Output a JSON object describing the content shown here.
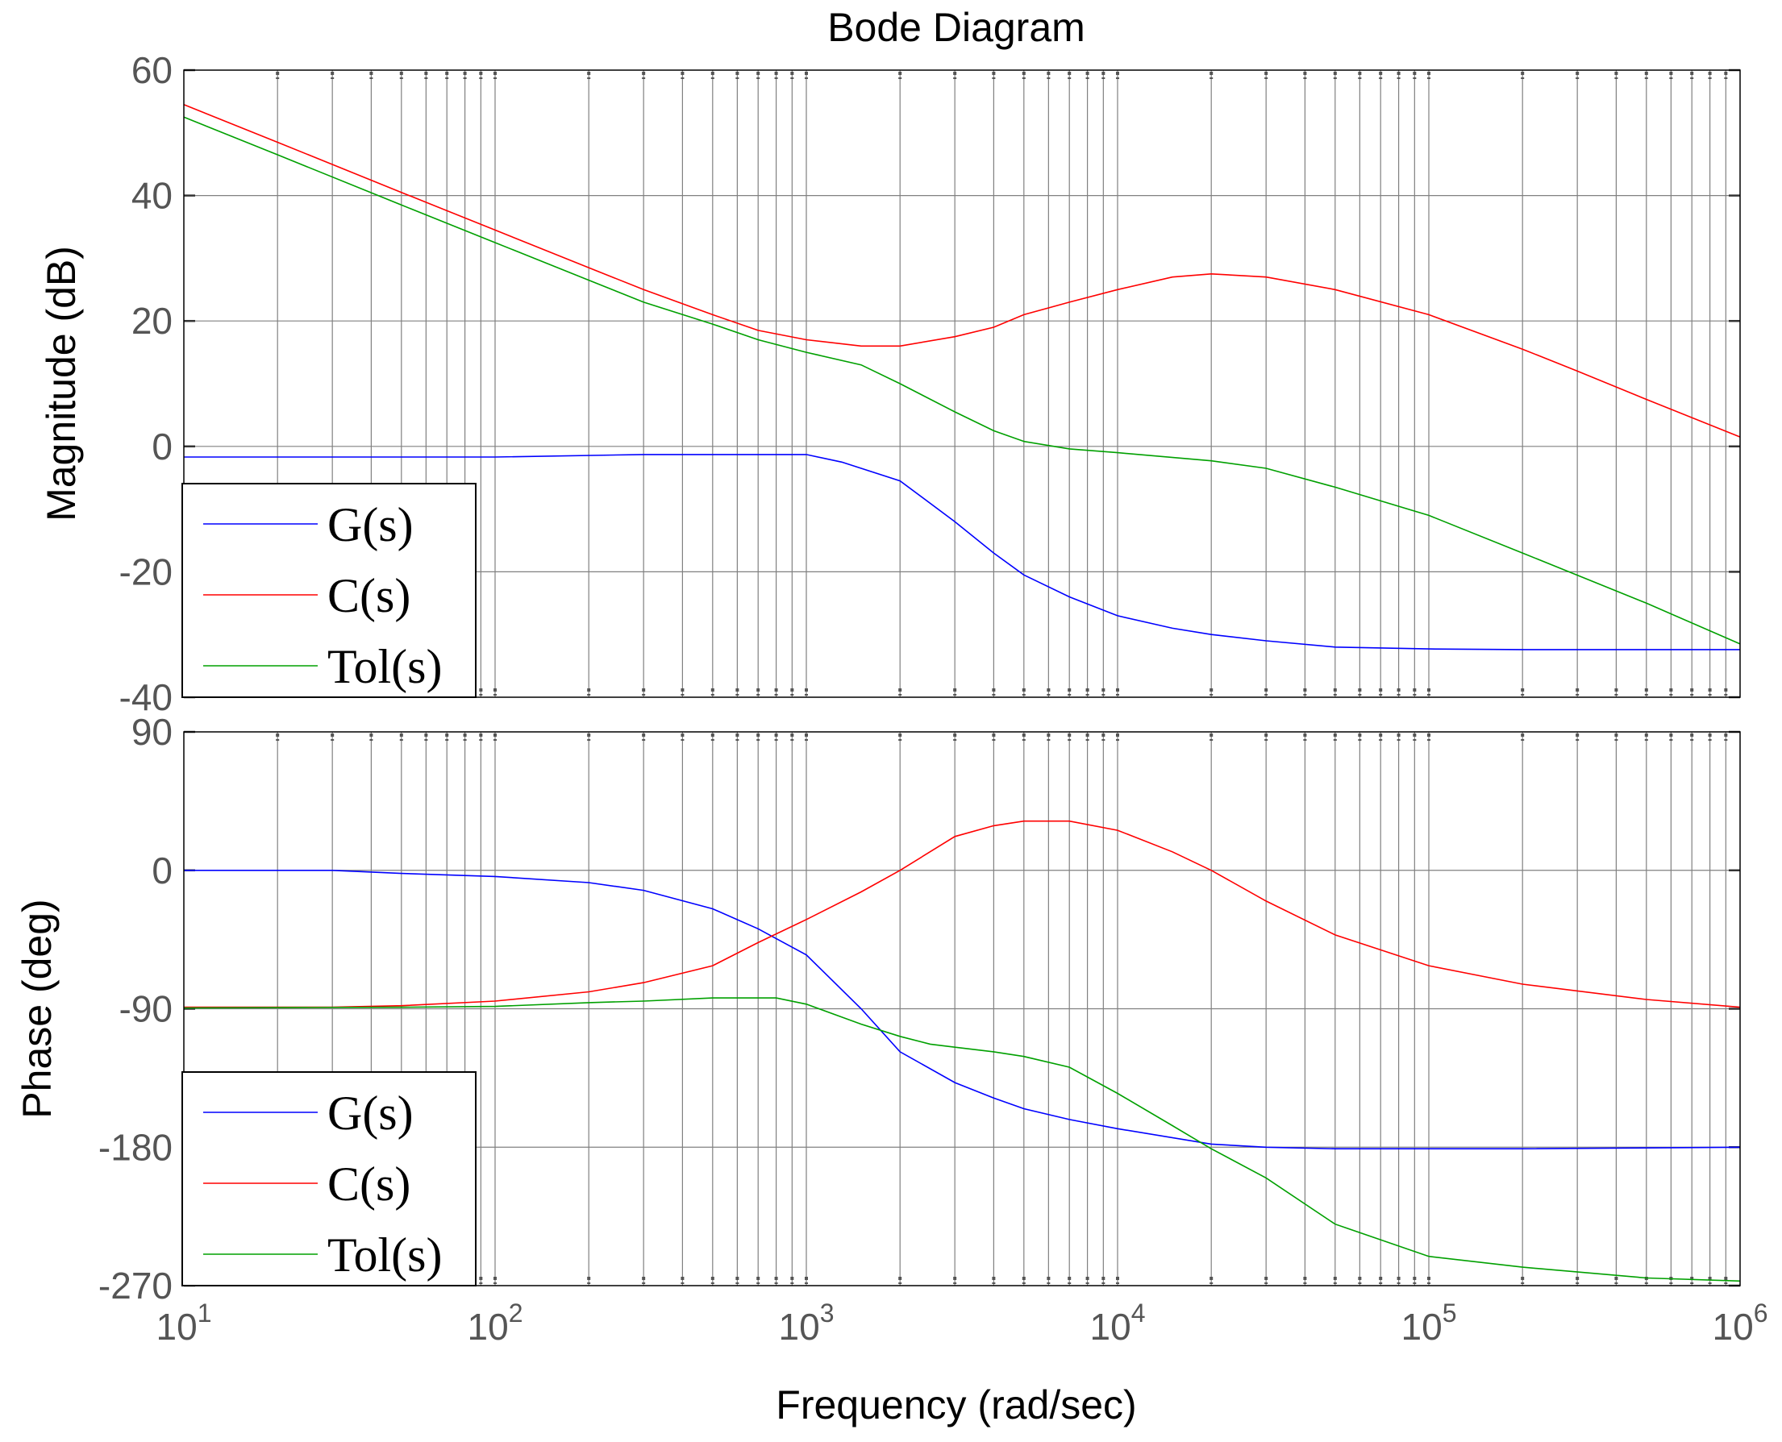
{
  "chart_data": {
    "type": "line",
    "title": "Bode Diagram",
    "xlabel": "Frequency  (rad/sec)",
    "xscale": "log",
    "xlim": [
      10,
      1000000
    ],
    "x_tick_labels": [
      {
        "base": "10",
        "exp": "1"
      },
      {
        "base": "10",
        "exp": "2"
      },
      {
        "base": "10",
        "exp": "3"
      },
      {
        "base": "10",
        "exp": "4"
      },
      {
        "base": "10",
        "exp": "5"
      },
      {
        "base": "10",
        "exp": "6"
      }
    ],
    "colors": {
      "G": "#0000ff",
      "C": "#ff0000",
      "Tol": "#00a000",
      "grid": "#808080"
    },
    "panels": [
      {
        "name": "magnitude",
        "ylabel": "Magnitude (dB)",
        "ylim": [
          -40,
          60
        ],
        "yticks": [
          60,
          40,
          20,
          0,
          -20,
          -40
        ],
        "ytick_labels": [
          "60",
          "40",
          "20",
          "0",
          "-20",
          "-40"
        ],
        "legend": {
          "placement": "bottom-left",
          "entries": [
            "G(s)",
            "C(s)",
            "Tol(s)"
          ]
        },
        "series": [
          {
            "name": "G(s)",
            "key": "G",
            "points": [
              [
                10,
                -1.7
              ],
              [
                30,
                -1.7
              ],
              [
                100,
                -1.7
              ],
              [
                300,
                -1.3
              ],
              [
                500,
                -1.3
              ],
              [
                1000,
                -1.3
              ],
              [
                1300,
                -2.5
              ],
              [
                2000,
                -5.5
              ],
              [
                3000,
                -12
              ],
              [
                4000,
                -17
              ],
              [
                5000,
                -20.5
              ],
              [
                7000,
                -24
              ],
              [
                10000,
                -27
              ],
              [
                15000,
                -29
              ],
              [
                20000,
                -30
              ],
              [
                30000,
                -31
              ],
              [
                50000,
                -32
              ],
              [
                100000,
                -32.3
              ],
              [
                200000,
                -32.4
              ],
              [
                1000000,
                -32.4
              ]
            ]
          },
          {
            "name": "C(s)",
            "key": "C",
            "points": [
              [
                10,
                54.5
              ],
              [
                20,
                48.5
              ],
              [
                50,
                40.5
              ],
              [
                100,
                34.5
              ],
              [
                200,
                28.5
              ],
              [
                300,
                25
              ],
              [
                500,
                21
              ],
              [
                700,
                18.5
              ],
              [
                1000,
                17
              ],
              [
                1500,
                16
              ],
              [
                2000,
                16
              ],
              [
                3000,
                17.5
              ],
              [
                4000,
                19
              ],
              [
                5000,
                21
              ],
              [
                7000,
                23
              ],
              [
                10000,
                25
              ],
              [
                15000,
                27
              ],
              [
                20000,
                27.5
              ],
              [
                30000,
                27
              ],
              [
                50000,
                25
              ],
              [
                100000,
                21
              ],
              [
                200000,
                15.5
              ],
              [
                300000,
                12
              ],
              [
                500000,
                7.5
              ],
              [
                1000000,
                1.5
              ]
            ]
          },
          {
            "name": "Tol(s)",
            "key": "Tol",
            "points": [
              [
                10,
                52.5
              ],
              [
                20,
                46.5
              ],
              [
                50,
                38.5
              ],
              [
                100,
                32.5
              ],
              [
                200,
                26.5
              ],
              [
                300,
                23
              ],
              [
                500,
                19.5
              ],
              [
                700,
                17
              ],
              [
                1000,
                15
              ],
              [
                1500,
                13
              ],
              [
                2000,
                10
              ],
              [
                3000,
                5.5
              ],
              [
                4000,
                2.5
              ],
              [
                5000,
                0.8
              ],
              [
                7000,
                -0.4
              ],
              [
                10000,
                -1
              ],
              [
                20000,
                -2.3
              ],
              [
                30000,
                -3.5
              ],
              [
                50000,
                -6.5
              ],
              [
                100000,
                -11
              ],
              [
                200000,
                -17
              ],
              [
                500000,
                -25
              ],
              [
                1000000,
                -31.5
              ]
            ]
          }
        ]
      },
      {
        "name": "phase",
        "ylabel": "Phase (deg)",
        "ylim": [
          -270,
          90
        ],
        "yticks": [
          90,
          0,
          -90,
          -180,
          -270
        ],
        "ytick_labels": [
          "90",
          "0",
          "-90",
          "-180",
          "-270"
        ],
        "legend": {
          "placement": "bottom-left",
          "entries": [
            "G(s)",
            "C(s)",
            "Tol(s)"
          ]
        },
        "series": [
          {
            "name": "G(s)",
            "key": "G",
            "points": [
              [
                10,
                0
              ],
              [
                30,
                0
              ],
              [
                50,
                -2
              ],
              [
                100,
                -4
              ],
              [
                200,
                -8
              ],
              [
                300,
                -13
              ],
              [
                500,
                -25
              ],
              [
                700,
                -38
              ],
              [
                1000,
                -55
              ],
              [
                1500,
                -90
              ],
              [
                2000,
                -118
              ],
              [
                3000,
                -138
              ],
              [
                4000,
                -148
              ],
              [
                5000,
                -155
              ],
              [
                7000,
                -162
              ],
              [
                10000,
                -168
              ],
              [
                20000,
                -178
              ],
              [
                30000,
                -180
              ],
              [
                50000,
                -181
              ],
              [
                100000,
                -181
              ],
              [
                200000,
                -181
              ],
              [
                1000000,
                -180
              ]
            ]
          },
          {
            "name": "C(s)",
            "key": "C",
            "points": [
              [
                10,
                -89
              ],
              [
                30,
                -89
              ],
              [
                50,
                -88
              ],
              [
                100,
                -85
              ],
              [
                200,
                -79
              ],
              [
                300,
                -73
              ],
              [
                500,
                -62
              ],
              [
                700,
                -47
              ],
              [
                1000,
                -32
              ],
              [
                1500,
                -14
              ],
              [
                2000,
                0
              ],
              [
                3000,
                22
              ],
              [
                4000,
                29
              ],
              [
                5000,
                32
              ],
              [
                7000,
                32
              ],
              [
                10000,
                26
              ],
              [
                15000,
                12
              ],
              [
                20000,
                0
              ],
              [
                30000,
                -20
              ],
              [
                50000,
                -42
              ],
              [
                100000,
                -62
              ],
              [
                200000,
                -74
              ],
              [
                500000,
                -84
              ],
              [
                1000000,
                -89
              ]
            ]
          },
          {
            "name": "Tol(s)",
            "key": "Tol",
            "points": [
              [
                10,
                -89.5
              ],
              [
                50,
                -89
              ],
              [
                100,
                -88.5
              ],
              [
                200,
                -86
              ],
              [
                300,
                -85
              ],
              [
                500,
                -83
              ],
              [
                800,
                -83
              ],
              [
                1000,
                -87
              ],
              [
                1500,
                -100
              ],
              [
                2000,
                -108
              ],
              [
                2500,
                -113
              ],
              [
                3000,
                -115
              ],
              [
                4000,
                -118
              ],
              [
                5000,
                -121
              ],
              [
                7000,
                -128
              ],
              [
                10000,
                -145
              ],
              [
                15000,
                -166
              ],
              [
                20000,
                -181
              ],
              [
                30000,
                -200
              ],
              [
                50000,
                -230
              ],
              [
                100000,
                -251
              ],
              [
                200000,
                -258
              ],
              [
                500000,
                -265
              ],
              [
                1000000,
                -267
              ]
            ]
          }
        ]
      }
    ]
  }
}
